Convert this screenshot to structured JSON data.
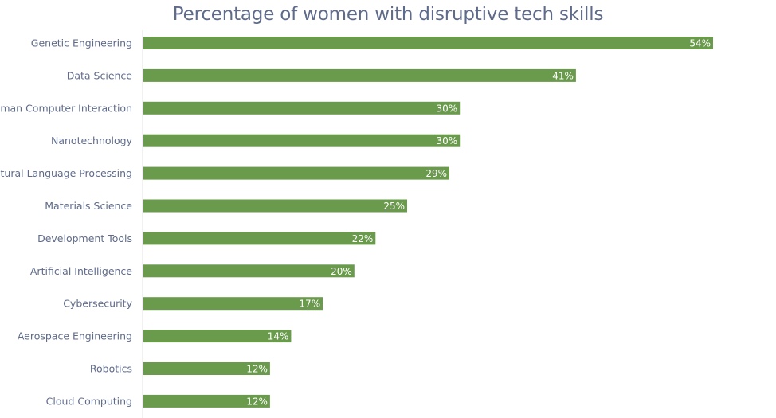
{
  "chart_data": {
    "type": "bar",
    "orientation": "horizontal",
    "title": "Percentage of women with disruptive tech skills",
    "categories": [
      "Genetic Engineering",
      "Data Science",
      "Human Computer Interaction",
      "Nanotechnology",
      "Natural Language Processing",
      "Materials Science",
      "Development Tools",
      "Artificial Intelligence",
      "Cybersecurity",
      "Aerospace Engineering",
      "Robotics",
      "Cloud Computing"
    ],
    "values": [
      54,
      41,
      30,
      30,
      29,
      25,
      22,
      20,
      17,
      14,
      12,
      12
    ],
    "value_labels": [
      "54%",
      "41%",
      "30%",
      "30%",
      "29%",
      "25%",
      "22%",
      "20%",
      "17%",
      "14%",
      "12%",
      "12%"
    ],
    "xlim": [
      0,
      54
    ],
    "grid": false,
    "legend": "none",
    "bar_color": "#6a9a4c",
    "label_color": "#5f6b8a",
    "axis_color": "#e3e3e3"
  }
}
